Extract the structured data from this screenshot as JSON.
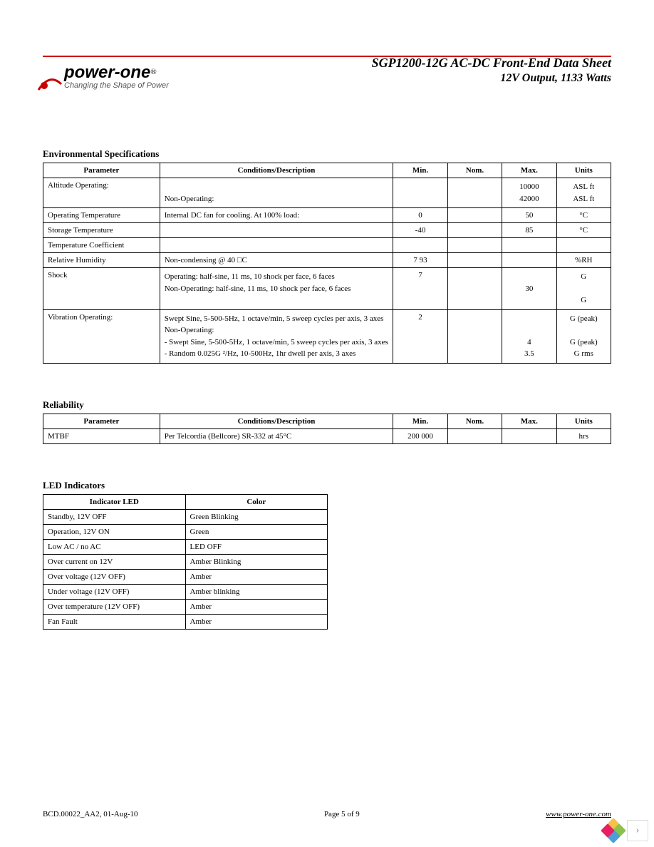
{
  "header": {
    "logo_text": "power-one",
    "logo_reg": "®",
    "tagline": "Changing the Shape of Power",
    "title": "SGP1200-12G AC-DC Front-End Data Sheet",
    "subtitle": "12V Output, 1133 Watts"
  },
  "sections": {
    "env": {
      "title": "Environmental Specifications",
      "header": [
        "Parameter",
        "Conditions/Description",
        "Min.",
        "Nom.",
        "Max.",
        "Units"
      ],
      "rows": [
        {
          "param": "Altitude Operating:",
          "desc": "\nNon-Operating:",
          "min": "",
          "nom": "",
          "max": "10000\n42000",
          "units": "ASL ft\nASL ft"
        },
        {
          "param": "Operating Temperature",
          "desc": "Internal DC fan for cooling.            At 100% load:",
          "min": "0",
          "nom": "",
          "max": "50",
          "units": "°C"
        },
        {
          "param": "Storage Temperature",
          "desc": "",
          "min": "-40",
          "nom": "",
          "max": "85",
          "units": "°C"
        },
        {
          "param": "Temperature Coefficient",
          "desc": "",
          "min": "",
          "nom": "",
          "max": "",
          "units": ""
        },
        {
          "param": "Relative Humidity",
          "desc": "Non-condensing @ 40      □C",
          "min": "7  93",
          "nom": "",
          "max": "",
          "units": "%RH"
        },
        {
          "param": "Shock",
          "desc": "Operating: half-sine, 11 ms, 10 shock per face, 6 faces\nNon-Operating: half-sine, 11 ms, 10 shock per face, 6 faces",
          "min": "7",
          "nom": "",
          "max": "\n30",
          "units": "G\n\nG"
        },
        {
          "param": "Vibration Operating:",
          "desc": "            Swept Sine, 5-500-5Hz, 1 octave/min, 5 sweep cycles per axis, 3 axes\nNon-Operating:\n- Swept Sine, 5-500-5Hz, 1 octave/min, 5 sweep cycles per axis, 3 axes\n- Random 0.025G    ²/Hz, 10-500Hz, 1hr dwell per axis, 3 axes",
          "min": "2",
          "nom": "",
          "max": "\n\n4\n3.5",
          "units": "G (peak)\n\nG (peak)\nG rms"
        }
      ]
    },
    "rel": {
      "title": "Reliability",
      "header": [
        "Parameter",
        "Conditions/Description",
        "Min.",
        "Nom.",
        "Max.",
        "Units"
      ],
      "rows": [
        {
          "param": "MTBF",
          "desc": "Per Telcordia (Bellcore) SR-332 at 45°C",
          "min": "200 000",
          "nom": "",
          "max": "",
          "units": "hrs"
        }
      ]
    },
    "led": {
      "title": "LED Indicators",
      "header": [
        "Indicator LED",
        "Color"
      ],
      "rows": [
        {
          "ind": "Standby, 12V OFF",
          "color": "Green Blinking"
        },
        {
          "ind": "Operation, 12V ON",
          "color": "Green"
        },
        {
          "ind": "Low AC / no AC",
          "color": "LED OFF"
        },
        {
          "ind": "Over current on 12V",
          "color": "Amber Blinking"
        },
        {
          "ind": "Over voltage (12V OFF)",
          "color": "Amber"
        },
        {
          "ind": "Under voltage (12V OFF)",
          "color": "Amber blinking"
        },
        {
          "ind": "Over temperature (12V OFF)",
          "color": "Amber"
        },
        {
          "ind": "Fan Fault",
          "color": "Amber"
        }
      ]
    }
  },
  "footer": {
    "left": "BCD.00022_AA2, 01-Aug-10",
    "center": "Page 5 of 9",
    "right": "www.power-one.com"
  },
  "widget": {
    "colors": [
      "#f6c244",
      "#8bc34a",
      "#4c9ed9",
      "#e91e63"
    ],
    "arrow": "›"
  },
  "colors": {
    "rule": "#cc0000",
    "text": "#000000",
    "border": "#000000"
  }
}
